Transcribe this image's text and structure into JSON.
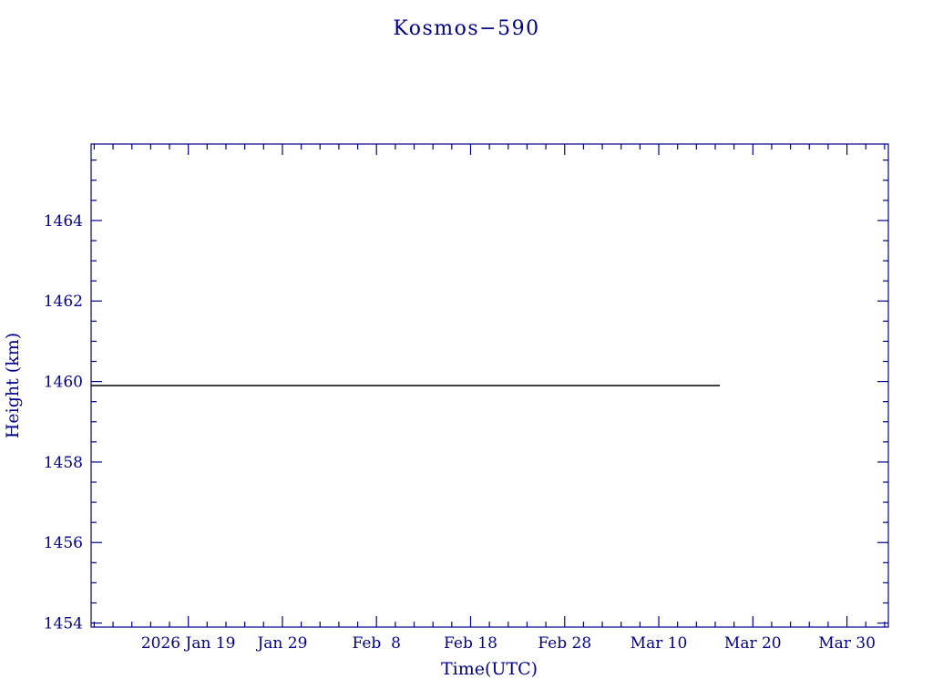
{
  "page": {
    "title": "Kosmos−590"
  },
  "chart_data": {
    "type": "line",
    "title": "Kosmos−590",
    "xlabel": "Time(UTC)",
    "ylabel": "Height (km)",
    "x_axis_unit": "day of year 2026",
    "xlim": [
      8.67,
      93.4
    ],
    "ylim": [
      1453.9,
      1465.9
    ],
    "grid": false,
    "legend": null,
    "x_major_ticks": [
      {
        "value": 19,
        "label": "2026 Jan 19"
      },
      {
        "value": 29,
        "label": "Jan 29"
      },
      {
        "value": 39,
        "label": "Feb  8"
      },
      {
        "value": 49,
        "label": "Feb 18"
      },
      {
        "value": 59,
        "label": "Feb 28"
      },
      {
        "value": 69,
        "label": "Mar 10"
      },
      {
        "value": 79,
        "label": "Mar 20"
      },
      {
        "value": 89,
        "label": "Mar 30"
      }
    ],
    "x_minor_step": 2,
    "y_major_ticks": [
      {
        "value": 1454,
        "label": "1454"
      },
      {
        "value": 1456,
        "label": "1456"
      },
      {
        "value": 1458,
        "label": "1458"
      },
      {
        "value": 1460,
        "label": "1460"
      },
      {
        "value": 1462,
        "label": "1462"
      },
      {
        "value": 1464,
        "label": "1464"
      }
    ],
    "y_minor_step": 0.5,
    "series": [
      {
        "name": "height",
        "color": "#000000",
        "points": [
          [
            8.67,
            1459.9
          ],
          [
            75.5,
            1459.9
          ]
        ]
      }
    ],
    "colors": {
      "axis": "#00008B",
      "text": "#00008B",
      "line": "#000000",
      "background": "#FFFFFF"
    }
  }
}
